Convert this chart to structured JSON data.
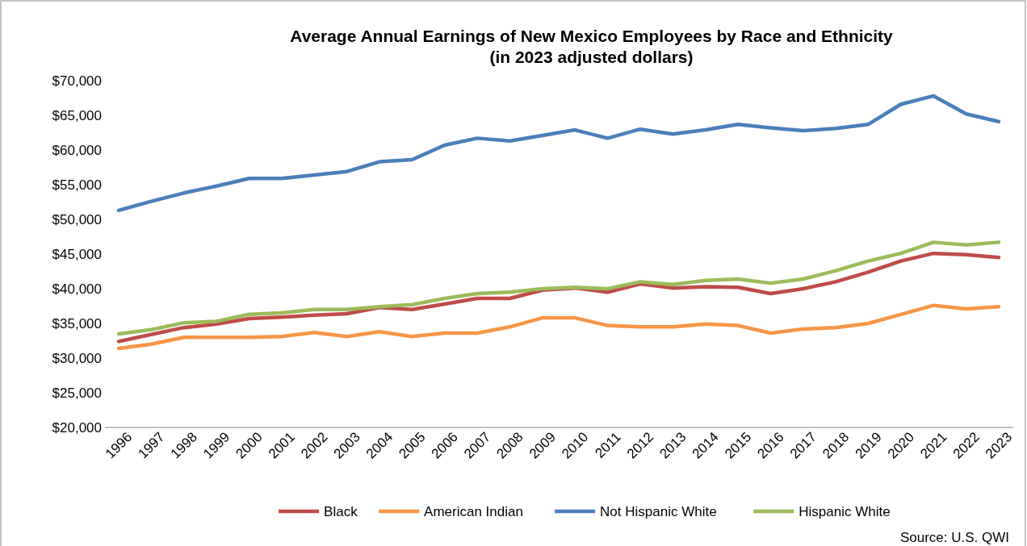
{
  "chart_data": {
    "type": "line",
    "title": "Average Annual Earnings of New Mexico Employees by Race and Ethnicity\n(in 2023 adjusted dollars)",
    "categories": [
      "1996",
      "1997",
      "1998",
      "1999",
      "2000",
      "2001",
      "2002",
      "2003",
      "2004",
      "2005",
      "2006",
      "2007",
      "2008",
      "2009",
      "2010",
      "2011",
      "2012",
      "2013",
      "2014",
      "2015",
      "2016",
      "2017",
      "2018",
      "2019",
      "2020",
      "2021",
      "2022",
      "2023"
    ],
    "series": [
      {
        "name": "Black",
        "color": "#be4b48",
        "values": [
          32400,
          33400,
          34400,
          34900,
          35700,
          35900,
          36200,
          36400,
          37300,
          37000,
          37800,
          38600,
          38600,
          39800,
          40100,
          39500,
          40700,
          40100,
          40300,
          40200,
          39300,
          40000,
          41000,
          42400,
          44000,
          45100,
          44900,
          44500
        ]
      },
      {
        "name": "American Indian",
        "color": "#f79646",
        "values": [
          31400,
          32000,
          33000,
          33000,
          33000,
          33100,
          33700,
          33100,
          33800,
          33100,
          33600,
          33600,
          34500,
          35800,
          35800,
          34700,
          34500,
          34500,
          34900,
          34700,
          33600,
          34200,
          34400,
          35000,
          36300,
          37600,
          37100,
          37400
        ]
      },
      {
        "name": "Not Hispanic White",
        "color": "#4a7ebb",
        "values": [
          51300,
          52600,
          53800,
          54800,
          55900,
          55900,
          56400,
          56900,
          58300,
          58600,
          60700,
          61700,
          61300,
          62100,
          62900,
          61700,
          63000,
          62300,
          62900,
          63700,
          63200,
          62800,
          63100,
          63700,
          66600,
          67800,
          65200,
          64100
        ]
      },
      {
        "name": "Hispanic White",
        "color": "#9bbb59",
        "values": [
          33500,
          34100,
          35100,
          35300,
          36300,
          36500,
          37000,
          37000,
          37400,
          37700,
          38600,
          39300,
          39500,
          40000,
          40200,
          40000,
          41000,
          40600,
          41200,
          41400,
          40800,
          41400,
          42600,
          44000,
          45100,
          46700,
          46300,
          46700
        ]
      }
    ],
    "ylim": [
      20000,
      70000
    ],
    "yticks": [
      {
        "value": 20000,
        "label": "$20,000"
      },
      {
        "value": 25000,
        "label": "$25,000"
      },
      {
        "value": 30000,
        "label": "$30,000"
      },
      {
        "value": 35000,
        "label": "$35,000"
      },
      {
        "value": 40000,
        "label": "$40,000"
      },
      {
        "value": 45000,
        "label": "$45,000"
      },
      {
        "value": 50000,
        "label": "$50,000"
      },
      {
        "value": 55000,
        "label": "$55,000"
      },
      {
        "value": 60000,
        "label": "$60,000"
      },
      {
        "value": 65000,
        "label": "$65,000"
      },
      {
        "value": 70000,
        "label": "$70,000"
      }
    ],
    "grid": false,
    "legend": "bottom",
    "marker": "none",
    "line_style": "solid",
    "annotations": [
      "Source: U.S. QWI"
    ]
  }
}
